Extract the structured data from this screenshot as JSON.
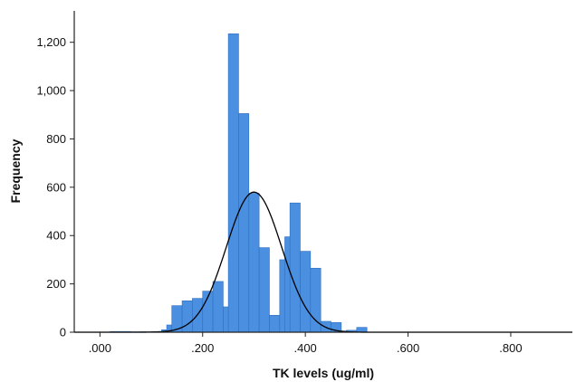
{
  "chart_data": {
    "type": "bar",
    "subtype": "histogram",
    "title": "",
    "xlabel": "TK levels (ug/ml)",
    "ylabel": "Frequency",
    "xlim": [
      -0.05,
      0.92
    ],
    "ylim": [
      0,
      1330
    ],
    "x_ticks": [
      0.0,
      0.2,
      0.4,
      0.6,
      0.8
    ],
    "x_tick_labels": [
      ".000",
      ".200",
      ".400",
      ".600",
      ".800"
    ],
    "y_ticks": [
      0,
      200,
      400,
      600,
      800,
      1000,
      1200
    ],
    "y_tick_labels": [
      "0",
      "200",
      "400",
      "600",
      "800",
      "1,000",
      "1,200"
    ],
    "bin_width": 0.02,
    "bins": [
      {
        "x": 0.03,
        "value": 3
      },
      {
        "x": 0.05,
        "value": 3
      },
      {
        "x": 0.07,
        "value": 2
      },
      {
        "x": 0.09,
        "value": 2
      },
      {
        "x": 0.11,
        "value": 3
      },
      {
        "x": 0.13,
        "value": 10
      },
      {
        "x": 0.14,
        "value": 30
      },
      {
        "x": 0.15,
        "value": 110
      },
      {
        "x": 0.17,
        "value": 130
      },
      {
        "x": 0.19,
        "value": 140
      },
      {
        "x": 0.21,
        "value": 170
      },
      {
        "x": 0.23,
        "value": 210
      },
      {
        "x": 0.25,
        "value": 105
      },
      {
        "x": 0.26,
        "value": 1235
      },
      {
        "x": 0.28,
        "value": 905
      },
      {
        "x": 0.3,
        "value": 575
      },
      {
        "x": 0.32,
        "value": 350
      },
      {
        "x": 0.34,
        "value": 70
      },
      {
        "x": 0.36,
        "value": 300
      },
      {
        "x": 0.37,
        "value": 395
      },
      {
        "x": 0.38,
        "value": 535
      },
      {
        "x": 0.4,
        "value": 335
      },
      {
        "x": 0.42,
        "value": 265
      },
      {
        "x": 0.44,
        "value": 45
      },
      {
        "x": 0.46,
        "value": 40
      },
      {
        "x": 0.48,
        "value": 5
      },
      {
        "x": 0.49,
        "value": 8
      },
      {
        "x": 0.51,
        "value": 20
      }
    ],
    "normal_curve": {
      "mean": 0.3,
      "sd": 0.054,
      "peak": 580
    },
    "grid": false,
    "legend": "none",
    "colors": {
      "bar": "#4a8fe0",
      "bar_edge": "#2f6fbf",
      "curve": "#000000",
      "axis": "#222222"
    }
  }
}
